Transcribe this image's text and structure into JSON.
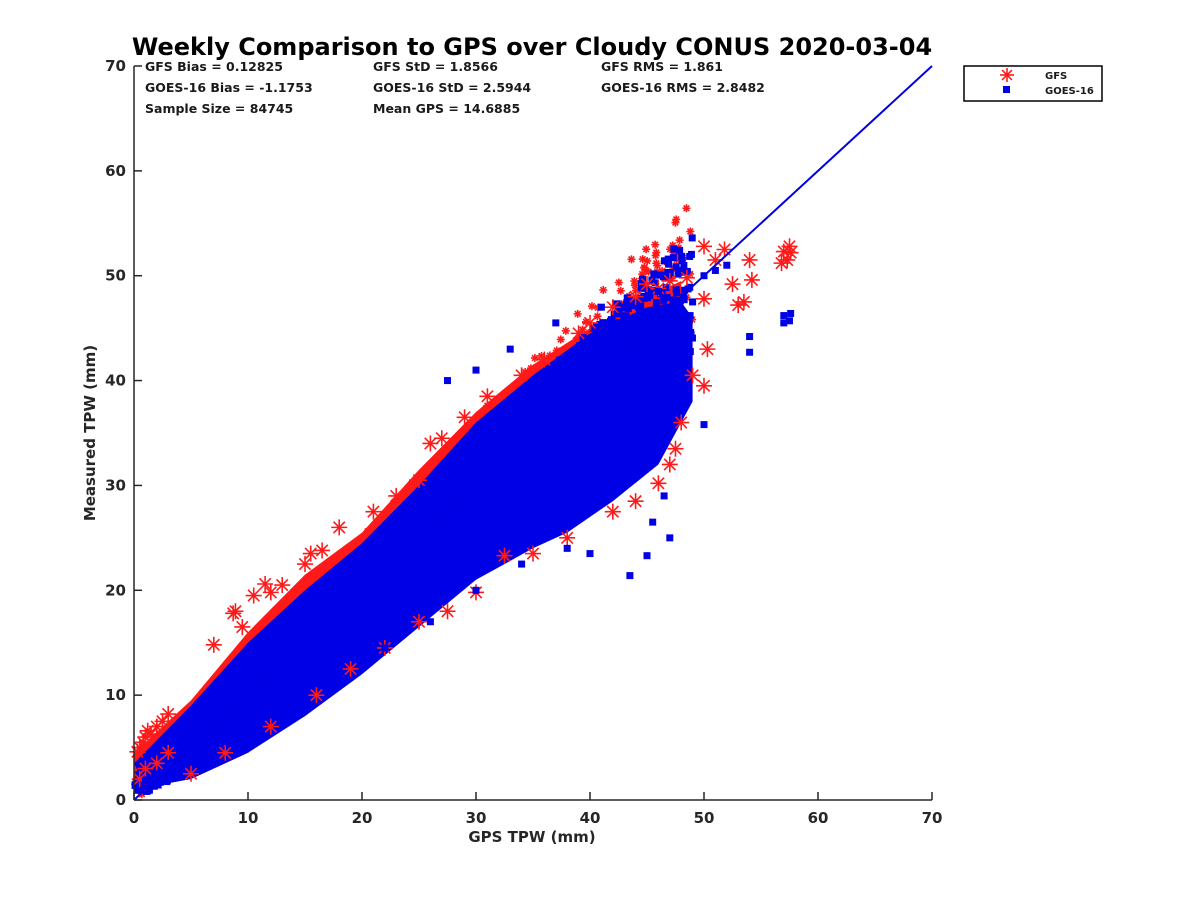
{
  "chart_data": {
    "type": "scatter",
    "title": "Weekly Comparison to GPS over Cloudy CONUS 2020-03-04",
    "xlabel": "GPS TPW (mm)",
    "ylabel": "Measured TPW (mm)",
    "xlim": [
      0,
      70
    ],
    "ylim": [
      0,
      70
    ],
    "xticks": [
      "0",
      "10",
      "20",
      "30",
      "40",
      "50",
      "60",
      "70"
    ],
    "yticks": [
      "0",
      "10",
      "20",
      "30",
      "40",
      "50",
      "60",
      "70"
    ],
    "grid": false,
    "legend_position": "outside-top-right",
    "stats": {
      "gfs_bias": "GFS Bias = 0.12825",
      "goes_bias": "GOES-16 Bias = -1.1753",
      "sample_size": "Sample Size = 84745",
      "gfs_std": "GFS StD = 1.8566",
      "goes_std": "GOES-16 StD = 2.5944",
      "mean_gps": "Mean GPS = 14.6885",
      "gfs_rms": "GFS RMS = 1.861",
      "goes_rms": "GOES-16 RMS = 2.8482"
    },
    "reference_line": {
      "x": [
        0,
        70
      ],
      "y": [
        0,
        70
      ],
      "color": "#0000e0"
    },
    "series": [
      {
        "name": "GFS",
        "marker": "asterisk",
        "color": "#ff1a1a",
        "points": [
          [
            0.3,
            4.6
          ],
          [
            0.5,
            5.0
          ],
          [
            0.8,
            5.5
          ],
          [
            1.0,
            6.0
          ],
          [
            1.2,
            6.6
          ],
          [
            1.5,
            6.3
          ],
          [
            2.0,
            7.0
          ],
          [
            2.5,
            7.5
          ],
          [
            3.0,
            8.2
          ],
          [
            0.5,
            2.0
          ],
          [
            1.0,
            3.0
          ],
          [
            2.0,
            3.5
          ],
          [
            3.0,
            4.5
          ],
          [
            7.0,
            14.8
          ],
          [
            8.7,
            17.8
          ],
          [
            8.9,
            18.0
          ],
          [
            9.5,
            16.5
          ],
          [
            10.5,
            19.5
          ],
          [
            11.5,
            20.6
          ],
          [
            12.0,
            19.8
          ],
          [
            13.0,
            20.5
          ],
          [
            15.0,
            22.5
          ],
          [
            15.5,
            23.5
          ],
          [
            16.5,
            23.8
          ],
          [
            18.0,
            26.0
          ],
          [
            21.0,
            27.5
          ],
          [
            23.0,
            29.0
          ],
          [
            25.0,
            30.5
          ],
          [
            26.0,
            34.0
          ],
          [
            27.0,
            34.5
          ],
          [
            29.0,
            36.5
          ],
          [
            31.0,
            38.5
          ],
          [
            34.0,
            40.5
          ],
          [
            36.0,
            42.0
          ],
          [
            39.0,
            44.5
          ],
          [
            40.0,
            45.5
          ],
          [
            42.0,
            47.0
          ],
          [
            44.0,
            48.0
          ],
          [
            45.0,
            49.2
          ],
          [
            46.0,
            48.8
          ],
          [
            47.0,
            49.5
          ],
          [
            48.5,
            49.8
          ],
          [
            50.0,
            52.8
          ],
          [
            51.0,
            51.5
          ],
          [
            51.8,
            52.5
          ],
          [
            52.5,
            49.2
          ],
          [
            53.0,
            47.2
          ],
          [
            53.5,
            47.5
          ],
          [
            54.0,
            51.5
          ],
          [
            54.2,
            49.6
          ],
          [
            50.0,
            47.8
          ],
          [
            50.3,
            43.0
          ],
          [
            49.0,
            40.5
          ],
          [
            50.0,
            39.5
          ],
          [
            48.0,
            36.0
          ],
          [
            47.5,
            33.5
          ],
          [
            47.0,
            32.0
          ],
          [
            46.0,
            30.2
          ],
          [
            44.0,
            28.5
          ],
          [
            42.0,
            27.5
          ],
          [
            38.0,
            25.0
          ],
          [
            35.0,
            23.5
          ],
          [
            32.5,
            23.3
          ],
          [
            30.0,
            19.8
          ],
          [
            27.5,
            18.0
          ],
          [
            25.0,
            17.0
          ],
          [
            22.0,
            14.5
          ],
          [
            19.0,
            12.5
          ],
          [
            16.0,
            10.0
          ],
          [
            12.0,
            7.0
          ],
          [
            8.0,
            4.5
          ],
          [
            5.0,
            2.5
          ],
          [
            57.0,
            52.3
          ],
          [
            57.3,
            51.5
          ],
          [
            57.6,
            52.2
          ],
          [
            56.8,
            51.2
          ],
          [
            57.5,
            52.8
          ]
        ]
      },
      {
        "name": "GOES-16",
        "marker": "square",
        "color": "#0000e6",
        "points": [
          [
            1.0,
            1.8
          ],
          [
            2.0,
            2.5
          ],
          [
            3.0,
            3.5
          ],
          [
            4.0,
            4.0
          ],
          [
            5.0,
            5.0
          ],
          [
            6.0,
            6.5
          ],
          [
            7.0,
            7.0
          ],
          [
            8.0,
            8.5
          ],
          [
            9.0,
            9.0
          ],
          [
            10.0,
            10.0
          ],
          [
            12.0,
            12.0
          ],
          [
            14.0,
            14.0
          ],
          [
            16.0,
            16.0
          ],
          [
            18.0,
            17.5
          ],
          [
            20.0,
            20.0
          ],
          [
            22.0,
            21.5
          ],
          [
            24.0,
            24.0
          ],
          [
            26.0,
            25.5
          ],
          [
            28.0,
            28.0
          ],
          [
            30.0,
            29.5
          ],
          [
            32.0,
            31.5
          ],
          [
            34.0,
            33.0
          ],
          [
            36.0,
            35.0
          ],
          [
            38.0,
            36.5
          ],
          [
            40.0,
            38.5
          ],
          [
            42.0,
            40.0
          ],
          [
            44.0,
            41.5
          ],
          [
            46.0,
            43.5
          ],
          [
            48.0,
            44.5
          ],
          [
            49.0,
            47.5
          ],
          [
            50.0,
            50.0
          ],
          [
            51.0,
            50.5
          ],
          [
            52.0,
            51.0
          ],
          [
            54.0,
            44.2
          ],
          [
            54.0,
            42.7
          ],
          [
            57.0,
            46.2
          ],
          [
            57.6,
            46.4
          ],
          [
            57.0,
            45.5
          ],
          [
            57.5,
            45.7
          ],
          [
            50.0,
            35.8
          ],
          [
            48.5,
            38.0
          ],
          [
            47.0,
            25.0
          ],
          [
            46.5,
            29.0
          ],
          [
            45.5,
            26.5
          ],
          [
            45.0,
            23.3
          ],
          [
            43.5,
            21.4
          ],
          [
            40.0,
            23.5
          ],
          [
            38.0,
            24.0
          ],
          [
            34.0,
            22.5
          ],
          [
            30.0,
            20.0
          ],
          [
            26.0,
            17.0
          ],
          [
            22.0,
            14.5
          ],
          [
            18.0,
            11.5
          ],
          [
            14.0,
            8.5
          ],
          [
            10.0,
            5.5
          ],
          [
            6.0,
            3.0
          ],
          [
            27.5,
            40.0
          ],
          [
            30.0,
            41.0
          ],
          [
            33.0,
            43.0
          ],
          [
            37.0,
            45.5
          ],
          [
            41.0,
            47.0
          ],
          [
            46.0,
            48.5
          ]
        ]
      }
    ],
    "band": {
      "gfs_band": {
        "upper": [
          [
            0,
            4.5
          ],
          [
            5,
            9.5
          ],
          [
            10,
            16
          ],
          [
            15,
            21.5
          ],
          [
            20,
            25.5
          ],
          [
            25,
            31.5
          ],
          [
            30,
            37
          ],
          [
            35,
            41.5
          ],
          [
            40,
            45
          ],
          [
            45,
            48
          ],
          [
            48,
            49.5
          ]
        ],
        "lower": [
          [
            48,
            38
          ],
          [
            45,
            34
          ],
          [
            40,
            30
          ],
          [
            35,
            25
          ],
          [
            30,
            21
          ],
          [
            25,
            17
          ],
          [
            20,
            12.5
          ],
          [
            15,
            8.5
          ],
          [
            10,
            4.5
          ],
          [
            5,
            2
          ],
          [
            0,
            1
          ]
        ]
      },
      "goes_band": {
        "upper": [
          [
            0,
            3.5
          ],
          [
            5,
            9
          ],
          [
            10,
            15
          ],
          [
            15,
            20
          ],
          [
            20,
            24.5
          ],
          [
            25,
            30
          ],
          [
            30,
            36
          ],
          [
            35,
            40.5
          ],
          [
            40,
            44.5
          ],
          [
            45,
            47
          ],
          [
            48,
            47.5
          ],
          [
            49,
            46
          ]
        ],
        "lower": [
          [
            49,
            38
          ],
          [
            46,
            32
          ],
          [
            42,
            28.5
          ],
          [
            38,
            25.5
          ],
          [
            35,
            24
          ],
          [
            30,
            21
          ],
          [
            25,
            16.5
          ],
          [
            20,
            12
          ],
          [
            15,
            8
          ],
          [
            10,
            4.5
          ],
          [
            5,
            2
          ],
          [
            1,
            1.2
          ]
        ]
      }
    }
  }
}
